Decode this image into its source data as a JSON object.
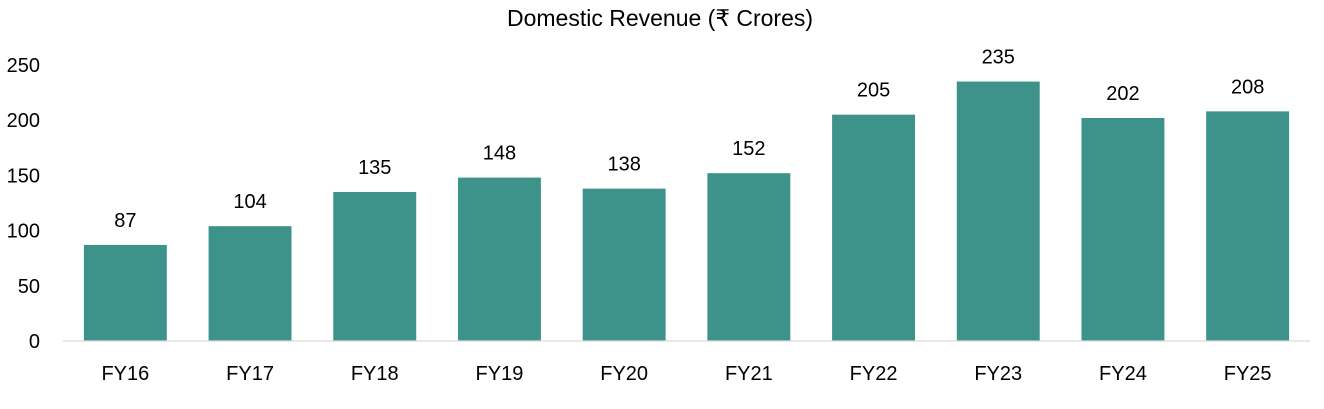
{
  "chart_data": {
    "type": "bar",
    "title": "Domestic Revenue (₹ Crores)",
    "categories": [
      "FY16",
      "FY17",
      "FY18",
      "FY19",
      "FY20",
      "FY21",
      "FY22",
      "FY23",
      "FY24",
      "FY25"
    ],
    "values": [
      87,
      104,
      135,
      148,
      138,
      152,
      205,
      235,
      202,
      208
    ],
    "xlabel": "",
    "ylabel": "",
    "ylim": [
      0,
      250
    ],
    "yticks": [
      0,
      50,
      100,
      150,
      200,
      250
    ],
    "grid": false,
    "legend": "none",
    "bar_color": "#3d9389"
  }
}
